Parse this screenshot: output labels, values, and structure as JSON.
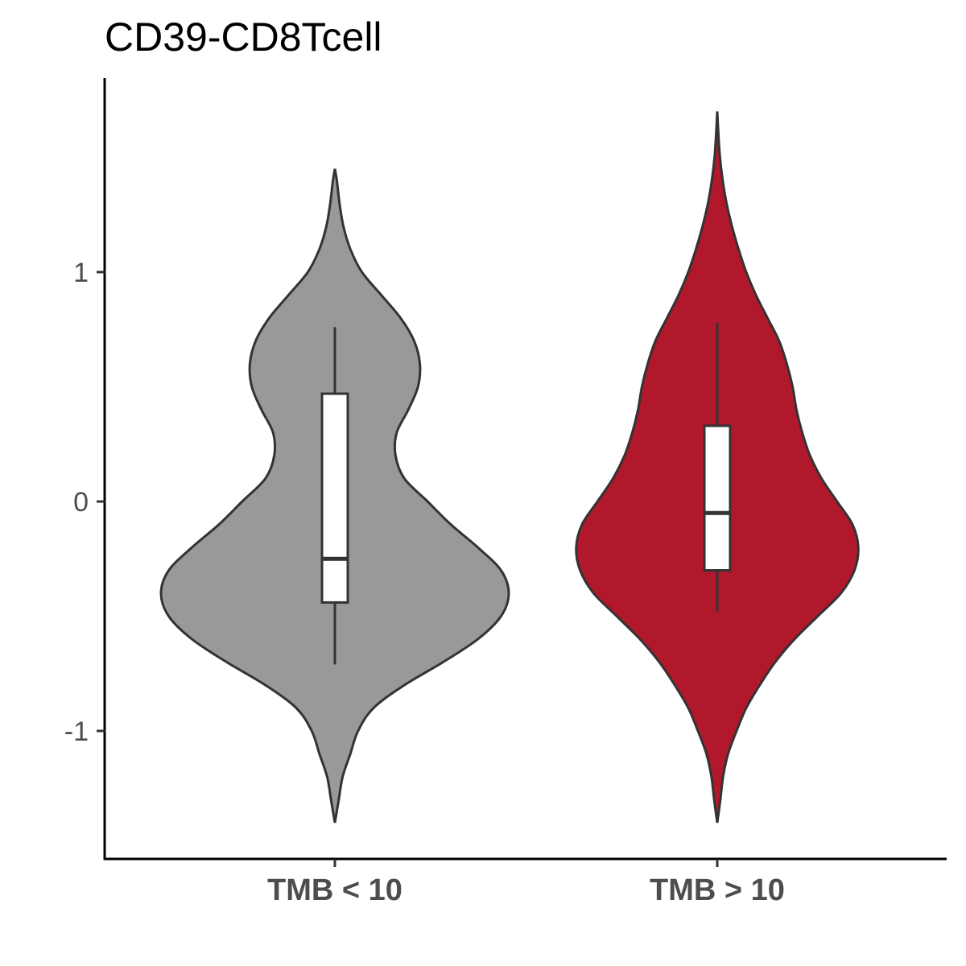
{
  "chart_data": {
    "type": "violin",
    "title": "CD39-CD8Tcell",
    "xlabel": "",
    "ylabel": "",
    "ylim": [
      -1.55,
      1.85
    ],
    "yticks": [
      -1,
      0,
      1
    ],
    "ytick_labels": [
      "-1",
      "0",
      "1"
    ],
    "grid": false,
    "legend": "none",
    "categories": [
      "TMB < 10",
      "TMB > 10"
    ],
    "series": [
      {
        "category": "TMB < 10",
        "color": "#999999",
        "box": {
          "whisker_low": -0.71,
          "q1": -0.44,
          "median": -0.25,
          "q3": 0.47,
          "whisker_high": 0.76
        },
        "violin_range": [
          -1.4,
          1.45
        ],
        "density": [
          [
            -1.4,
            0.0
          ],
          [
            -1.3,
            0.01
          ],
          [
            -1.2,
            0.02
          ],
          [
            -1.1,
            0.04
          ],
          [
            -1.0,
            0.06
          ],
          [
            -0.9,
            0.1
          ],
          [
            -0.8,
            0.18
          ],
          [
            -0.7,
            0.28
          ],
          [
            -0.6,
            0.37
          ],
          [
            -0.5,
            0.43
          ],
          [
            -0.4,
            0.45
          ],
          [
            -0.3,
            0.43
          ],
          [
            -0.2,
            0.37
          ],
          [
            -0.1,
            0.3
          ],
          [
            0.0,
            0.24
          ],
          [
            0.1,
            0.18
          ],
          [
            0.2,
            0.157
          ],
          [
            0.3,
            0.16
          ],
          [
            0.4,
            0.19
          ],
          [
            0.5,
            0.215
          ],
          [
            0.6,
            0.22
          ],
          [
            0.7,
            0.205
          ],
          [
            0.8,
            0.17
          ],
          [
            0.9,
            0.12
          ],
          [
            1.0,
            0.07
          ],
          [
            1.1,
            0.04
          ],
          [
            1.2,
            0.022
          ],
          [
            1.3,
            0.012
          ],
          [
            1.4,
            0.005
          ],
          [
            1.45,
            0.0
          ]
        ]
      },
      {
        "category": "TMB > 10",
        "color": "#B2182B",
        "box": {
          "whisker_low": -0.48,
          "q1": -0.3,
          "median": -0.05,
          "q3": 0.33,
          "whisker_high": 0.78
        },
        "violin_range": [
          -1.4,
          1.7
        ],
        "density": [
          [
            -1.4,
            0.0
          ],
          [
            -1.3,
            0.008
          ],
          [
            -1.2,
            0.015
          ],
          [
            -1.1,
            0.028
          ],
          [
            -1.0,
            0.05
          ],
          [
            -0.9,
            0.075
          ],
          [
            -0.8,
            0.11
          ],
          [
            -0.7,
            0.15
          ],
          [
            -0.6,
            0.2
          ],
          [
            -0.5,
            0.26
          ],
          [
            -0.4,
            0.32
          ],
          [
            -0.3,
            0.355
          ],
          [
            -0.2,
            0.365
          ],
          [
            -0.1,
            0.35
          ],
          [
            0.0,
            0.31
          ],
          [
            0.1,
            0.27
          ],
          [
            0.2,
            0.24
          ],
          [
            0.3,
            0.22
          ],
          [
            0.4,
            0.205
          ],
          [
            0.5,
            0.195
          ],
          [
            0.6,
            0.18
          ],
          [
            0.7,
            0.16
          ],
          [
            0.8,
            0.13
          ],
          [
            0.9,
            0.1
          ],
          [
            1.0,
            0.075
          ],
          [
            1.1,
            0.055
          ],
          [
            1.2,
            0.038
          ],
          [
            1.3,
            0.024
          ],
          [
            1.4,
            0.014
          ],
          [
            1.5,
            0.007
          ],
          [
            1.6,
            0.003
          ],
          [
            1.7,
            0.0
          ]
        ]
      }
    ]
  }
}
